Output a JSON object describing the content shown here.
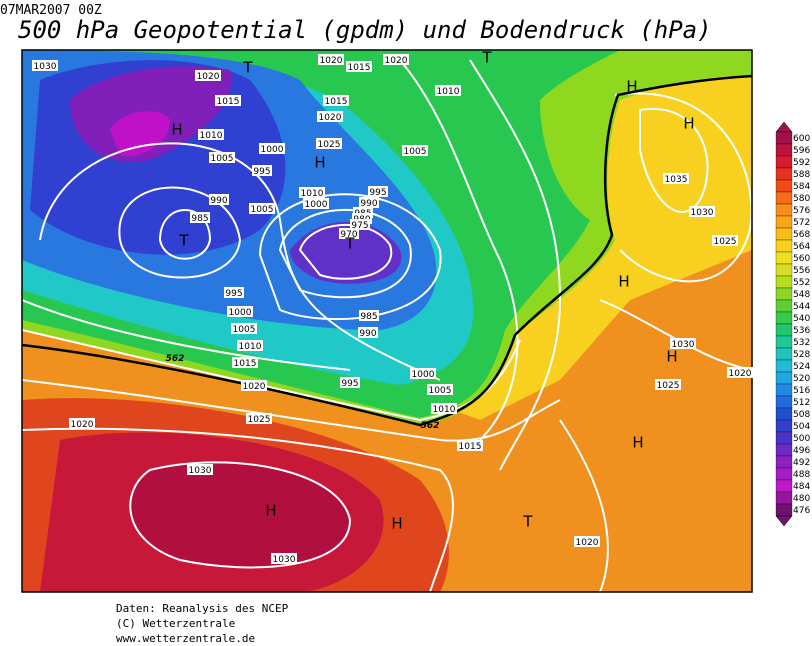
{
  "header": {
    "date": "07MAR2007 00Z",
    "title": "500 hPa Geopotential (gpdm) und Bodendruck (hPa)"
  },
  "colorbar": {
    "ticks": [
      600,
      596,
      592,
      588,
      584,
      580,
      576,
      572,
      568,
      564,
      560,
      556,
      552,
      548,
      544,
      540,
      536,
      532,
      528,
      524,
      520,
      516,
      512,
      508,
      504,
      500,
      496,
      492,
      488,
      484,
      480,
      476
    ]
  },
  "map": {
    "isobar_labels": [
      1030,
      1020,
      1015,
      1010,
      1005,
      1000,
      995,
      990,
      985,
      1005,
      1010,
      1000,
      995,
      990,
      985,
      980,
      975,
      970,
      1020,
      1015,
      1020,
      1015,
      1020,
      1025,
      1010,
      1005,
      995,
      1000,
      1005,
      1010,
      1015,
      1020,
      1025,
      1030,
      1030,
      1020,
      985,
      990,
      995,
      1000,
      1005,
      1010,
      1015,
      1020,
      1025,
      1030,
      1020,
      1025,
      1030,
      1035
    ],
    "contour_labels": [
      562,
      562
    ],
    "centers": [
      "H",
      "H",
      "H",
      "H",
      "H",
      "H",
      "H",
      "H",
      "H",
      "T",
      "T",
      "T",
      "T",
      "T"
    ]
  },
  "credits": [
    "Daten: Reanalysis des NCEP",
    "(C) Wetterzentrale",
    "www.wetterzentrale.de"
  ]
}
